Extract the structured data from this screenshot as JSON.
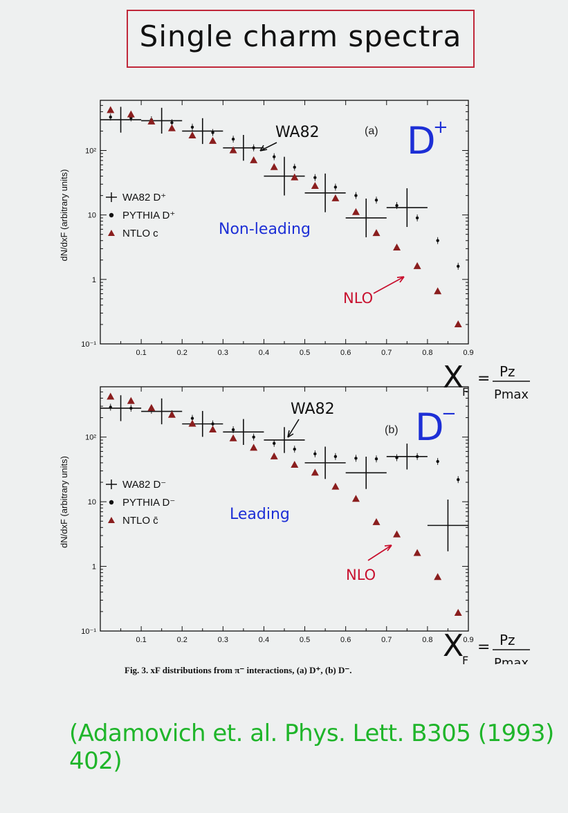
{
  "page": {
    "title": "Single charm spectra",
    "caption": "Fig. 3. xF distributions from π⁻ interactions, (a) D⁺, (b) D⁻.",
    "citation": "(Adamovich et. al. Phys. Lett. B305 (1993) 402)"
  },
  "annotations_a": {
    "panel_label": "(a)",
    "particle": "D",
    "particle_sup": "+",
    "wa82_arrow": "WA82",
    "region": "Non-leading",
    "nlo": "NLO",
    "xf_formula_lhs": "X",
    "xf_formula_sub": "F",
    "xf_formula_num": "Pz",
    "xf_formula_den": "Pmax"
  },
  "annotations_b": {
    "panel_label": "(b)",
    "particle": "D",
    "particle_sup": "−",
    "wa82_arrow": "WA82",
    "region": "Leading",
    "nlo": "NLO",
    "xf_formula_lhs": "X",
    "xf_formula_sub": "F",
    "xf_formula_num": "Pz",
    "xf_formula_den": "Pmax"
  },
  "colors": {
    "title_border": "#c0283a",
    "handwriting_blue": "#1d2fd6",
    "handwriting_red": "#c8102e",
    "handwriting_green": "#1fb52a",
    "triangle_fill": "#8a1e1e"
  },
  "chart_data": [
    {
      "type": "scatter",
      "ylabel": "dN/dxF (arbitrary units)",
      "xlim": [
        0,
        0.9
      ],
      "ylim": [
        0.1,
        600
      ],
      "yscale": "log",
      "xticks": [
        "0.1",
        "0.2",
        "0.3",
        "0.4",
        "0.5",
        "0.6",
        "0.7",
        "0.8",
        "0.9"
      ],
      "yticks": [
        "10⁻¹",
        "1",
        "10",
        "10²"
      ],
      "legend": [
        "WA82 D⁺",
        "PYTHIA D⁺",
        "NTLO c"
      ],
      "legend_position": "left-middle",
      "series": [
        {
          "name": "WA82 D⁺",
          "marker": "cross",
          "points": [
            {
              "x": 0.05,
              "y": 300,
              "xerr": 0.05,
              "yerr": 0.2
            },
            {
              "x": 0.15,
              "y": 290,
              "xerr": 0.05,
              "yerr": 0.2
            },
            {
              "x": 0.25,
              "y": 200,
              "xerr": 0.05,
              "yerr": 0.2
            },
            {
              "x": 0.35,
              "y": 110,
              "xerr": 0.05,
              "yerr": 0.2
            },
            {
              "x": 0.45,
              "y": 40,
              "xerr": 0.05,
              "yerr": 0.3
            },
            {
              "x": 0.55,
              "y": 22,
              "xerr": 0.05,
              "yerr": 0.3
            },
            {
              "x": 0.65,
              "y": 9,
              "xerr": 0.05,
              "yerr": 0.3
            },
            {
              "x": 0.75,
              "y": 13,
              "xerr": 0.05,
              "yerr": 0.3
            }
          ]
        },
        {
          "name": "PYTHIA D⁺",
          "marker": "dot",
          "points": [
            {
              "x": 0.025,
              "y": 330
            },
            {
              "x": 0.075,
              "y": 320
            },
            {
              "x": 0.125,
              "y": 300
            },
            {
              "x": 0.175,
              "y": 270
            },
            {
              "x": 0.225,
              "y": 230
            },
            {
              "x": 0.275,
              "y": 190
            },
            {
              "x": 0.325,
              "y": 150
            },
            {
              "x": 0.375,
              "y": 110
            },
            {
              "x": 0.425,
              "y": 80
            },
            {
              "x": 0.475,
              "y": 55
            },
            {
              "x": 0.525,
              "y": 38
            },
            {
              "x": 0.575,
              "y": 27
            },
            {
              "x": 0.625,
              "y": 20
            },
            {
              "x": 0.675,
              "y": 17
            },
            {
              "x": 0.725,
              "y": 14
            },
            {
              "x": 0.775,
              "y": 9
            },
            {
              "x": 0.825,
              "y": 4
            },
            {
              "x": 0.875,
              "y": 1.6
            }
          ]
        },
        {
          "name": "NTLO c",
          "marker": "triangle",
          "points": [
            {
              "x": 0.025,
              "y": 420
            },
            {
              "x": 0.075,
              "y": 360
            },
            {
              "x": 0.125,
              "y": 280
            },
            {
              "x": 0.175,
              "y": 220
            },
            {
              "x": 0.225,
              "y": 170
            },
            {
              "x": 0.275,
              "y": 140
            },
            {
              "x": 0.325,
              "y": 100
            },
            {
              "x": 0.375,
              "y": 70
            },
            {
              "x": 0.425,
              "y": 55
            },
            {
              "x": 0.475,
              "y": 38
            },
            {
              "x": 0.525,
              "y": 28
            },
            {
              "x": 0.575,
              "y": 18
            },
            {
              "x": 0.625,
              "y": 11
            },
            {
              "x": 0.675,
              "y": 5.2
            },
            {
              "x": 0.725,
              "y": 3.1
            },
            {
              "x": 0.775,
              "y": 1.6
            },
            {
              "x": 0.825,
              "y": 0.65
            },
            {
              "x": 0.875,
              "y": 0.2
            }
          ]
        }
      ]
    },
    {
      "type": "scatter",
      "ylabel": "dN/dxF (arbitrary units)",
      "xlim": [
        0,
        0.9
      ],
      "ylim": [
        0.1,
        600
      ],
      "yscale": "log",
      "xticks": [
        "0.1",
        "0.2",
        "0.3",
        "0.4",
        "0.5",
        "0.6",
        "0.7",
        "0.8",
        "0.9"
      ],
      "yticks": [
        "10⁻¹",
        "1",
        "10",
        "10²"
      ],
      "legend": [
        "WA82 D⁻",
        "PYTHIA D⁻",
        "NTLO c̄"
      ],
      "legend_position": "left-middle",
      "series": [
        {
          "name": "WA82 D⁻",
          "marker": "cross",
          "points": [
            {
              "x": 0.05,
              "y": 280,
              "xerr": 0.05,
              "yerr": 0.2
            },
            {
              "x": 0.15,
              "y": 250,
              "xerr": 0.05,
              "yerr": 0.2
            },
            {
              "x": 0.25,
              "y": 160,
              "xerr": 0.05,
              "yerr": 0.2
            },
            {
              "x": 0.35,
              "y": 120,
              "xerr": 0.05,
              "yerr": 0.2
            },
            {
              "x": 0.45,
              "y": 90,
              "xerr": 0.05,
              "yerr": 0.2
            },
            {
              "x": 0.55,
              "y": 40,
              "xerr": 0.05,
              "yerr": 0.25
            },
            {
              "x": 0.65,
              "y": 28,
              "xerr": 0.05,
              "yerr": 0.25
            },
            {
              "x": 0.75,
              "y": 50,
              "xerr": 0.05,
              "yerr": 0.2
            },
            {
              "x": 0.85,
              "y": 4.3,
              "xerr": 0.05,
              "yerr": 0.4
            }
          ]
        },
        {
          "name": "PYTHIA D⁻",
          "marker": "dot",
          "points": [
            {
              "x": 0.025,
              "y": 290
            },
            {
              "x": 0.075,
              "y": 280
            },
            {
              "x": 0.125,
              "y": 260
            },
            {
              "x": 0.175,
              "y": 230
            },
            {
              "x": 0.225,
              "y": 195
            },
            {
              "x": 0.275,
              "y": 160
            },
            {
              "x": 0.325,
              "y": 130
            },
            {
              "x": 0.375,
              "y": 100
            },
            {
              "x": 0.425,
              "y": 80
            },
            {
              "x": 0.475,
              "y": 65
            },
            {
              "x": 0.525,
              "y": 55
            },
            {
              "x": 0.575,
              "y": 50
            },
            {
              "x": 0.625,
              "y": 47
            },
            {
              "x": 0.675,
              "y": 46
            },
            {
              "x": 0.725,
              "y": 48
            },
            {
              "x": 0.775,
              "y": 50
            },
            {
              "x": 0.825,
              "y": 42
            },
            {
              "x": 0.875,
              "y": 22
            }
          ]
        },
        {
          "name": "NTLO c̄",
          "marker": "triangle",
          "points": [
            {
              "x": 0.025,
              "y": 420
            },
            {
              "x": 0.075,
              "y": 360
            },
            {
              "x": 0.125,
              "y": 280
            },
            {
              "x": 0.175,
              "y": 220
            },
            {
              "x": 0.225,
              "y": 160
            },
            {
              "x": 0.275,
              "y": 130
            },
            {
              "x": 0.325,
              "y": 95
            },
            {
              "x": 0.375,
              "y": 68
            },
            {
              "x": 0.425,
              "y": 50
            },
            {
              "x": 0.475,
              "y": 37
            },
            {
              "x": 0.525,
              "y": 28
            },
            {
              "x": 0.575,
              "y": 17
            },
            {
              "x": 0.625,
              "y": 11
            },
            {
              "x": 0.675,
              "y": 4.8
            },
            {
              "x": 0.725,
              "y": 3.1
            },
            {
              "x": 0.775,
              "y": 1.6
            },
            {
              "x": 0.825,
              "y": 0.68
            },
            {
              "x": 0.875,
              "y": 0.19
            }
          ]
        }
      ]
    }
  ]
}
